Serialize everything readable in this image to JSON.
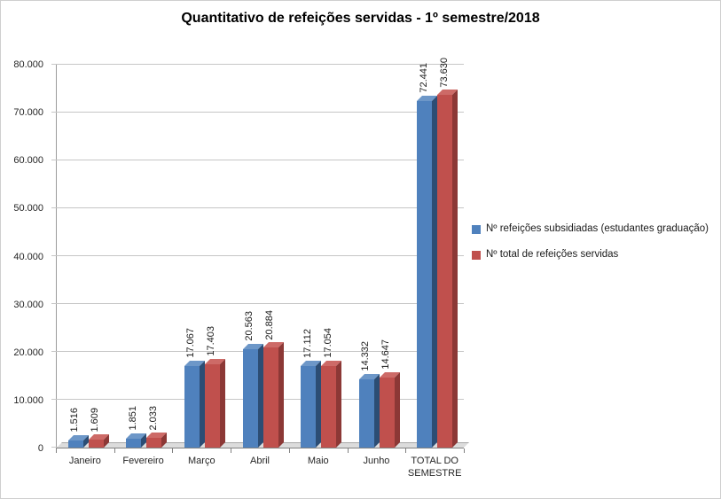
{
  "chart_data": {
    "type": "bar",
    "style": "3d-clustered",
    "title": "Quantitativo de refeições servidas - 1º semestre/2018",
    "categories": [
      "Janeiro",
      "Fevereiro",
      "Março",
      "Abril",
      "Maio",
      "Junho",
      "TOTAL DO SEMESTRE"
    ],
    "series": [
      {
        "name": "Nº refeições subsidiadas (estudantes graduação)",
        "color": "#4f81bd",
        "top_color": "#6d97c8",
        "side_color": "#2c4d74",
        "values": [
          1516,
          1851,
          17067,
          20563,
          17112,
          14332,
          72441
        ],
        "labels": [
          "1.516",
          "1.851",
          "17.067",
          "20.563",
          "17.112",
          "14.332",
          "72.441"
        ]
      },
      {
        "name": "Nº total de refeições servidas",
        "color": "#c0504d",
        "top_color": "#cd6a67",
        "side_color": "#8c3836",
        "values": [
          1609,
          2033,
          17403,
          20884,
          17054,
          14647,
          73630
        ],
        "labels": [
          "1.609",
          "2.033",
          "17.403",
          "20.884",
          "17.054",
          "14.647",
          "73.630"
        ]
      }
    ],
    "xlabel": "",
    "ylabel": "",
    "ylim": [
      0,
      80000
    ],
    "yticks": [
      0,
      10000,
      20000,
      30000,
      40000,
      50000,
      60000,
      70000,
      80000
    ],
    "ytick_labels": [
      "0",
      "10.000",
      "20.000",
      "30.000",
      "40.000",
      "50.000",
      "60.000",
      "70.000",
      "80.000"
    ],
    "grid": true,
    "legend_position": "right"
  }
}
